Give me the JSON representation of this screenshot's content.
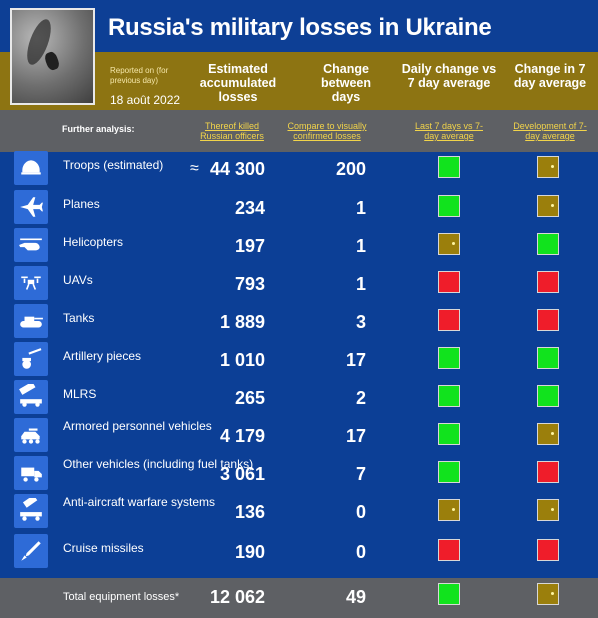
{
  "header": {
    "title": "Russia's military losses in Ukraine",
    "reported_on": "Reported on (for previous day)",
    "date": "18 août 2022",
    "columns": {
      "estimated": "Estimated accumulated losses",
      "change": "Change between days",
      "daily_vs_avg": "Daily change vs 7 day average",
      "change_avg": "Change in 7 day average"
    }
  },
  "analysis": {
    "label": "Further analysis:",
    "links": [
      "Thereof killed Russian officers",
      "Compare to visually confirmed losses",
      "Last 7 days vs 7-day average",
      "Development of 7-day average"
    ]
  },
  "rows": [
    {
      "label": "Troops (estimated)",
      "approx": "≈",
      "value": "44 300",
      "change": "200",
      "daily": "green",
      "avg": "neutral"
    },
    {
      "label": "Planes",
      "value": "234",
      "change": "1",
      "daily": "green",
      "avg": "neutral"
    },
    {
      "label": "Helicopters",
      "value": "197",
      "change": "1",
      "daily": "neutral",
      "avg": "green"
    },
    {
      "label": "UAVs",
      "value": "793",
      "change": "1",
      "daily": "red",
      "avg": "red"
    },
    {
      "label": "Tanks",
      "value": "1 889",
      "change": "3",
      "daily": "red",
      "avg": "red"
    },
    {
      "label": "Artillery pieces",
      "value": "1 010",
      "change": "17",
      "daily": "green",
      "avg": "green"
    },
    {
      "label": "MLRS",
      "value": "265",
      "change": "2",
      "daily": "green",
      "avg": "green"
    },
    {
      "label": "Armored personnel vehicles",
      "value": "4 179",
      "change": "17",
      "daily": "green",
      "avg": "neutral"
    },
    {
      "label": "Other vehicles (including fuel tanks)",
      "value": "3 061",
      "change": "7",
      "daily": "green",
      "avg": "red"
    },
    {
      "label": "Anti-aircraft warfare systems",
      "value": "136",
      "change": "0",
      "daily": "neutral",
      "avg": "neutral"
    },
    {
      "label": "Cruise missiles",
      "value": "190",
      "change": "0",
      "daily": "red",
      "avg": "red"
    }
  ],
  "total": {
    "label": "Total equipment losses*",
    "value": "12 062",
    "change": "49",
    "daily": "green",
    "avg": "neutral"
  },
  "icons": [
    "helmet-icon",
    "plane-icon",
    "helicopter-icon",
    "drone-icon",
    "tank-icon",
    "artillery-icon",
    "mlrs-icon",
    "armored-vehicle-icon",
    "truck-icon",
    "anti-aircraft-icon",
    "missile-icon"
  ],
  "colors": {
    "bg": "#0c3f96",
    "header_gold": "#8d7412",
    "green": "#11e31d",
    "red": "#ef1d2a",
    "neutral": "#9b7f0c",
    "link": "#f2d44a"
  }
}
